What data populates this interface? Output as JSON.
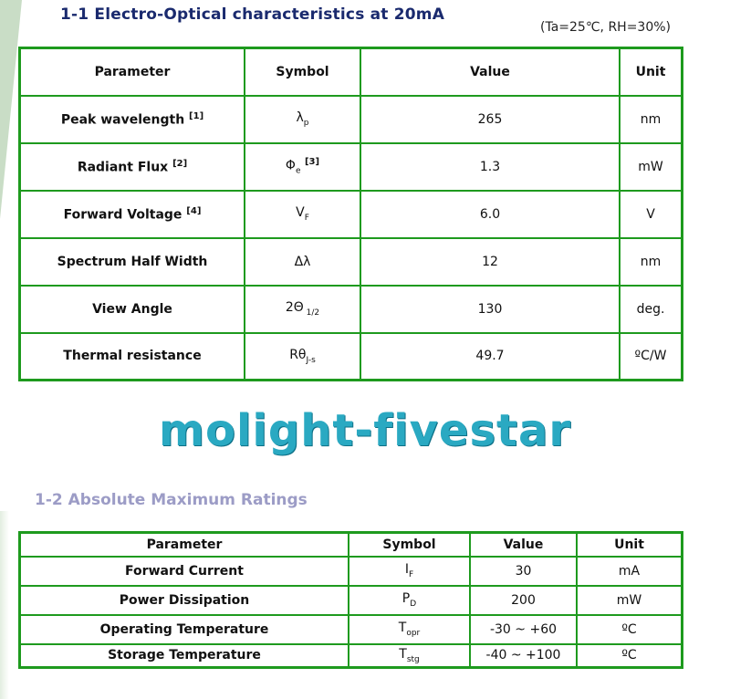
{
  "section1": {
    "title": "1-1  Electro-Optical characteristics at 20mA",
    "conditions": "(Ta=25℃, RH=30%)",
    "headers": [
      "Parameter",
      "Symbol",
      "Value",
      "Unit"
    ],
    "rows": [
      {
        "parameter": "Peak wavelength",
        "note": "[1]",
        "symbol": "λ",
        "symbol_sub": "p",
        "symbol_sup": "",
        "value": "265",
        "unit": "nm"
      },
      {
        "parameter": "Radiant Flux",
        "note": "[2]",
        "symbol": "Φ",
        "symbol_sub": "e",
        "symbol_sup": "[3]",
        "value": "1.3",
        "unit": "mW"
      },
      {
        "parameter": "Forward Voltage",
        "note": "[4]",
        "symbol": "V",
        "symbol_sub": "F",
        "symbol_sup": "",
        "value": "6.0",
        "unit": "V"
      },
      {
        "parameter": "Spectrum Half Width",
        "note": "",
        "symbol": "Δλ",
        "symbol_sub": "",
        "symbol_sup": "",
        "value": "12",
        "unit": "nm"
      },
      {
        "parameter": "View Angle",
        "note": "",
        "symbol": "2Θ",
        "symbol_sub": " 1/2",
        "symbol_sup": "",
        "value": "130",
        "unit": "deg."
      },
      {
        "parameter": "Thermal resistance",
        "note": "",
        "symbol": "Rθ",
        "symbol_sub": "J-s",
        "symbol_sup": "",
        "value": "49.7",
        "unit": "ºC/W"
      }
    ]
  },
  "section2": {
    "title": "1-2  Absolute Maximum Ratings",
    "headers": [
      "Parameter",
      "Symbol",
      "Value",
      "Unit"
    ],
    "rows": [
      {
        "parameter": "Forward Current",
        "symbol": "I",
        "symbol_sub": "F",
        "value": "30",
        "unit": "mA"
      },
      {
        "parameter": "Power Dissipation",
        "symbol": "P",
        "symbol_sub": "D",
        "value": "200",
        "unit": "mW"
      },
      {
        "parameter": "Operating Temperature",
        "symbol": "T",
        "symbol_sub": "opr",
        "value": "-30 ~ +60",
        "unit": "ºC"
      },
      {
        "parameter": "Storage  Temperature",
        "symbol": "T",
        "symbol_sub": "stg",
        "value": "-40 ~ +100",
        "unit": "ºC"
      }
    ]
  },
  "watermark": "molight-fivestar",
  "colors": {
    "table_border": "#1e9a1e",
    "title1": "#1a2a6e",
    "title2": "#9c9cc6",
    "watermark": "#2aa9c2"
  }
}
